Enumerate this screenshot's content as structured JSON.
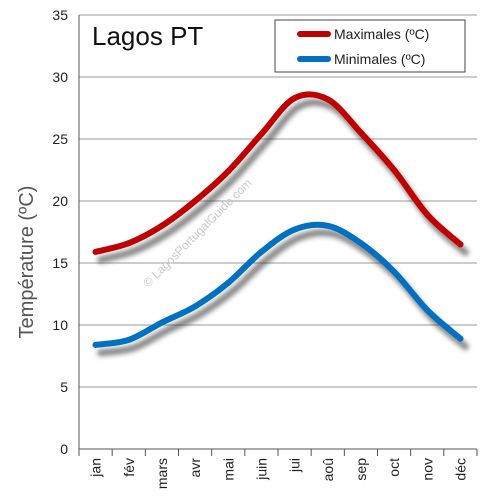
{
  "chart_data": {
    "type": "line",
    "title": "Lagos PT",
    "ylabel": "Température (ºC)",
    "xlabel": "",
    "categories": [
      "jan",
      "fév",
      "mars",
      "avr",
      "mai",
      "juin",
      "jui",
      "aoû",
      "sep",
      "oct",
      "nov",
      "déc"
    ],
    "yticks": [
      0,
      5,
      10,
      15,
      20,
      25,
      30,
      35
    ],
    "ylim": [
      0,
      35
    ],
    "grid": true,
    "legend_position": "top-right",
    "watermark": "© LagosPortugalGuide.com",
    "series": [
      {
        "name": "Maximales (ºC)",
        "color": "#c00000",
        "values": [
          15.9,
          16.6,
          18.0,
          20.0,
          22.4,
          25.4,
          28.3,
          28.2,
          25.5,
          22.5,
          18.9,
          16.5
        ]
      },
      {
        "name": "Minimales (ºC)",
        "color": "#0070c0",
        "values": [
          8.4,
          8.8,
          10.2,
          11.5,
          13.4,
          15.9,
          17.7,
          18.0,
          16.6,
          14.3,
          11.2,
          8.9
        ]
      }
    ]
  }
}
